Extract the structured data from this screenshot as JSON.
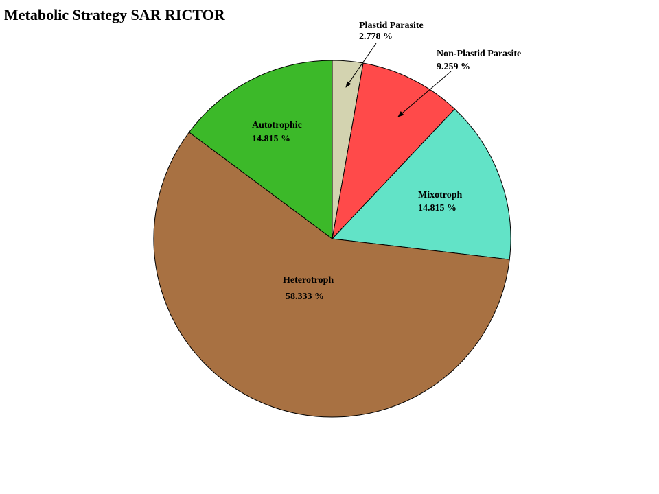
{
  "chart_data": {
    "type": "pie",
    "title": "Metabolic Strategy SAR RICTOR",
    "slices": [
      {
        "name": "Plastid Parasite",
        "value": 2.778,
        "label": "2.778 %",
        "color": "#D3D3B0"
      },
      {
        "name": "Non-Plastid Parasite",
        "value": 9.259,
        "label": "9.259 %",
        "color": "#FF4A4A"
      },
      {
        "name": "Mixotroph",
        "value": 14.815,
        "label": "14.815 %",
        "color": "#62E3C7"
      },
      {
        "name": "Heterotroph",
        "value": 58.333,
        "label": "58.333 %",
        "color": "#A87142"
      },
      {
        "name": "Autotrophic",
        "value": 14.815,
        "label": "14.815 %",
        "color": "#3CB929"
      }
    ],
    "start": "12 o'clock",
    "direction": "clockwise",
    "legend": "none"
  }
}
